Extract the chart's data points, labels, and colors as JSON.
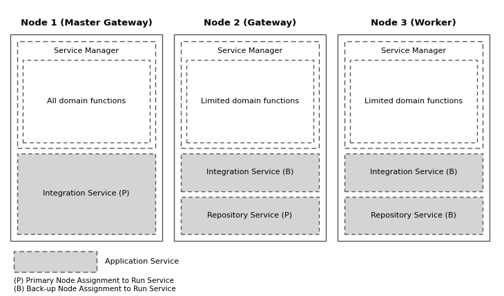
{
  "nodes": [
    {
      "title": "Node 1 (Master Gateway)",
      "inner_box_label": "All domain functions",
      "services": [
        {
          "label": "Integration Service (P)",
          "shaded": true
        }
      ]
    },
    {
      "title": "Node 2 (Gateway)",
      "inner_box_label": "Limited domain functions",
      "services": [
        {
          "label": "Integration Service (B)",
          "shaded": true
        },
        {
          "label": "Repository Service (P)",
          "shaded": true
        }
      ]
    },
    {
      "title": "Node 3 (Worker)",
      "inner_box_label": "Limited domain functions",
      "services": [
        {
          "label": "Integration Service (B)",
          "shaded": true
        },
        {
          "label": "Repository Service (B)",
          "shaded": true
        }
      ]
    }
  ],
  "service_manager_label": "Service Manager",
  "legend_label": "Application Service",
  "footnote1": "(P) Primary Node Assignment to Run Service",
  "footnote2": "(B) Back-up Node Assignment to Run Service",
  "background_color": "#ffffff",
  "node_border_color": "#555555",
  "dashed_border_color": "#555555",
  "shaded_fill": "#d4d4d4",
  "white_fill": "#ffffff",
  "title_fontsize": 9.5,
  "label_fontsize": 8,
  "footnote_fontsize": 7.5
}
